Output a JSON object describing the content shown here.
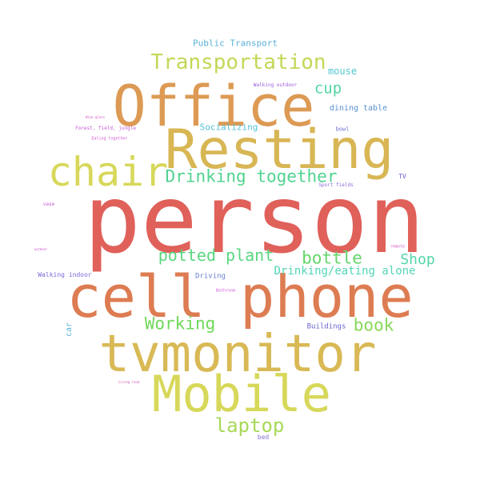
{
  "words": [
    {
      "text": "person",
      "color": "#e0605a"
    },
    {
      "text": "cell phone",
      "color": "#dd7c52"
    },
    {
      "text": "Office",
      "color": "#dc9a54"
    },
    {
      "text": "Resting",
      "color": "#d8b654"
    },
    {
      "text": "tvmonitor",
      "color": "#d8b955"
    },
    {
      "text": "Mobile",
      "color": "#d7d85a"
    },
    {
      "text": "chair",
      "color": "#d7d85a"
    },
    {
      "text": "Transportation",
      "color": "#c4d756"
    },
    {
      "text": "Drinking together",
      "color": "#52d390"
    },
    {
      "text": "potted plant",
      "color": "#5ad680"
    },
    {
      "text": "bottle",
      "color": "#64d66a"
    },
    {
      "text": "Shop",
      "color": "#52d6a6"
    },
    {
      "text": "Working",
      "color": "#6fd85a"
    },
    {
      "text": "book",
      "color": "#8ad85a"
    },
    {
      "text": "laptop",
      "color": "#a8d858"
    },
    {
      "text": "cup",
      "color": "#52d6a2"
    },
    {
      "text": "Drinking/eating alone",
      "color": "#52d6b6"
    },
    {
      "text": "mouse",
      "color": "#52c8d0"
    },
    {
      "text": "Public Transport",
      "color": "#5ab0d8"
    },
    {
      "text": "Socializing",
      "color": "#52c0d8"
    },
    {
      "text": "dining table",
      "color": "#5a90d0"
    },
    {
      "text": "Walking outdoor",
      "color": "#9a5ad8"
    },
    {
      "text": "bowl",
      "color": "#6a70d0"
    },
    {
      "text": "TV",
      "color": "#6a60d0"
    },
    {
      "text": "Sport fields",
      "color": "#8a6ad8"
    },
    {
      "text": "Walking indoor",
      "color": "#7a68d8"
    },
    {
      "text": "Driving",
      "color": "#6a80d0"
    },
    {
      "text": "Buildings",
      "color": "#6a62d0"
    },
    {
      "text": "car",
      "color": "#5ab0d8"
    },
    {
      "text": "bed",
      "color": "#8a70d8"
    },
    {
      "text": "Forest, field, jungle",
      "color": "#c05ad0"
    },
    {
      "text": "Eating together",
      "color": "#d05ad0"
    },
    {
      "text": "Wine glass",
      "color": "#d05ac0"
    },
    {
      "text": "vase",
      "color": "#c05ad8"
    },
    {
      "text": "remote",
      "color": "#d05ac8"
    },
    {
      "text": "outdoor",
      "color": "#d05ad0"
    },
    {
      "text": "Bathroom",
      "color": "#d05ad8"
    },
    {
      "text": "Living room",
      "color": "#d85ab8"
    }
  ]
}
